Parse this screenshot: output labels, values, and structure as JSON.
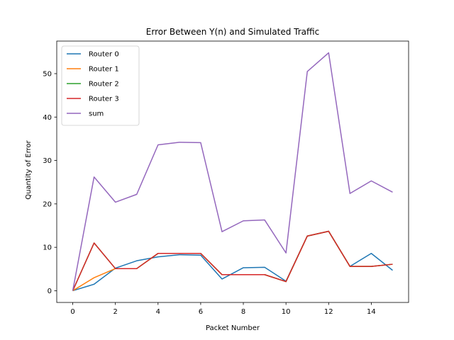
{
  "chart_data": {
    "type": "line",
    "title": "Error Between Y(n) and Simulated Traffic",
    "xlabel": "Packet Number",
    "ylabel": "Quantity of Error",
    "xlim": [
      -0.75,
      15.75
    ],
    "ylim": [
      -2.7,
      57.5
    ],
    "xticks": [
      0,
      2,
      4,
      6,
      8,
      10,
      12,
      14
    ],
    "yticks": [
      0,
      10,
      20,
      30,
      40,
      50
    ],
    "legend_position": "top-left",
    "grid": false,
    "x": [
      0,
      1,
      2,
      3,
      4,
      5,
      6,
      7,
      8,
      9,
      10,
      11,
      12,
      13,
      14,
      15
    ],
    "series": [
      {
        "name": "Router 0",
        "color": "#1f77b4",
        "values": [
          0,
          1.5,
          5.2,
          6.9,
          7.8,
          8.3,
          8.2,
          2.7,
          5.3,
          5.4,
          2.2,
          12.6,
          13.7,
          5.6,
          8.6,
          4.7
        ]
      },
      {
        "name": "Router 1",
        "color": "#ff7f0e",
        "values": [
          0,
          3.0,
          5.1,
          5.1,
          8.6,
          8.6,
          8.6,
          3.7,
          3.7,
          3.7,
          2.1,
          12.6,
          13.7,
          5.6,
          5.6,
          6.1
        ]
      },
      {
        "name": "Router 2",
        "color": "#2ca02c",
        "values": [
          0,
          11.0,
          5.1,
          5.1,
          8.6,
          8.6,
          8.6,
          3.7,
          3.7,
          3.7,
          2.1,
          12.6,
          13.7,
          5.6,
          5.6,
          6.1
        ]
      },
      {
        "name": "Router 3",
        "color": "#d62728",
        "values": [
          0,
          11.0,
          5.1,
          5.1,
          8.6,
          8.6,
          8.6,
          3.7,
          3.7,
          3.7,
          2.1,
          12.6,
          13.7,
          5.6,
          5.6,
          6.1
        ]
      },
      {
        "name": "sum",
        "color": "#9467bd",
        "values": [
          0,
          26.2,
          20.4,
          22.2,
          33.6,
          34.2,
          34.1,
          13.6,
          16.1,
          16.3,
          8.7,
          50.5,
          54.8,
          22.4,
          25.3,
          22.7
        ]
      }
    ]
  }
}
